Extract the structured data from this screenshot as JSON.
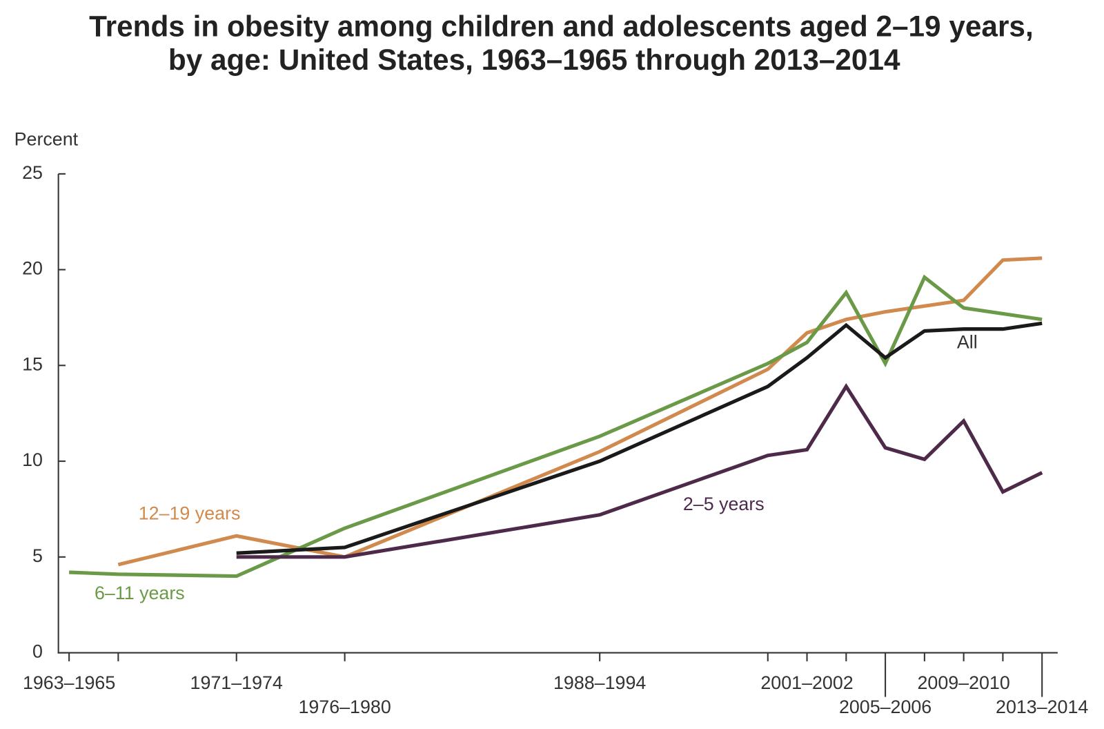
{
  "chart_data": {
    "type": "line",
    "title": [
      "Trends in obesity among children and adolescents aged 2–19 years,",
      "by age: United States, 1963–1965 through 2013–2014"
    ],
    "y_label": "Percent",
    "categories": [
      "1963–1965",
      null,
      "1971–1974",
      "1976–1980",
      "1988–1994",
      null,
      "2001–2002",
      null,
      "2005–2006",
      null,
      "2009–2010",
      null,
      "2013–2014"
    ],
    "series": [
      {
        "name": "12–19 years",
        "color": "#d08a4e",
        "values": [
          null,
          4.6,
          6.1,
          5.0,
          10.5,
          14.8,
          16.7,
          17.4,
          17.8,
          18.1,
          18.4,
          20.5,
          20.6
        ]
      },
      {
        "name": "6–11 years",
        "color": "#6a9a48",
        "values": [
          4.2,
          4.1,
          4.0,
          6.5,
          11.3,
          15.1,
          16.2,
          18.8,
          15.1,
          19.6,
          18.0,
          17.7,
          17.4
        ]
      },
      {
        "name": "All",
        "color": "#1a1a1a",
        "values": [
          null,
          null,
          5.2,
          5.5,
          10.0,
          13.9,
          15.4,
          17.1,
          15.4,
          16.8,
          16.9,
          16.9,
          17.2
        ]
      },
      {
        "name": "2–5 years",
        "color": "#4e2a4a",
        "values": [
          null,
          null,
          5.0,
          5.0,
          7.2,
          10.3,
          10.6,
          13.9,
          10.7,
          10.1,
          12.1,
          8.4,
          9.4
        ]
      }
    ],
    "ylim": [
      0,
      25
    ],
    "yticks": [
      0,
      5,
      10,
      15,
      20,
      25
    ],
    "grid": false
  }
}
